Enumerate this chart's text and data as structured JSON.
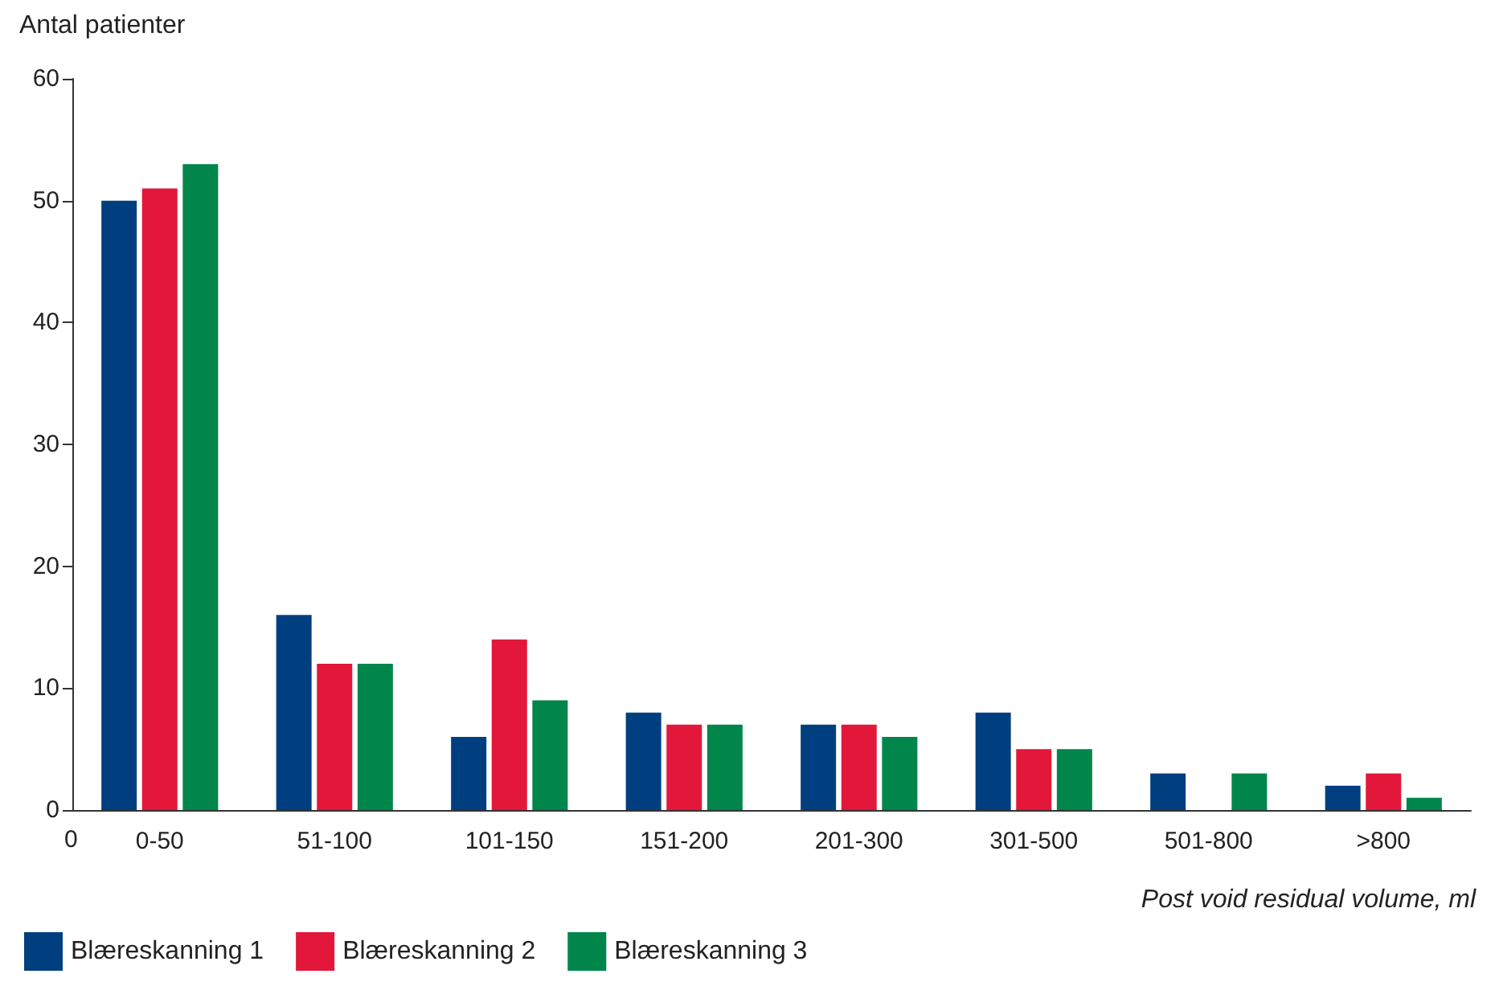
{
  "chart_data": {
    "type": "bar",
    "ylabel": "Antal patienter",
    "xlabel": "Post void residual volume, ml",
    "categories": [
      "0-50",
      "51-100",
      "101-150",
      "151-200",
      "201-300",
      "301-500",
      "501-800",
      ">800"
    ],
    "series": [
      {
        "name": "Blæreskanning 1",
        "color": "#003f7f",
        "values": [
          50,
          16,
          6,
          8,
          7,
          8,
          3,
          2
        ]
      },
      {
        "name": "Blæreskanning 2",
        "color": "#e3173a",
        "values": [
          51,
          12,
          14,
          7,
          7,
          5,
          0,
          3
        ]
      },
      {
        "name": "Blæreskanning 3",
        "color": "#00854a",
        "values": [
          53,
          12,
          9,
          7,
          6,
          5,
          3,
          1
        ]
      }
    ],
    "ylim": [
      0,
      60
    ],
    "yticks": [
      0,
      10,
      20,
      30,
      40,
      50,
      60
    ],
    "grid": false,
    "legend": "bottom left",
    "annotations": [
      "0"
    ]
  }
}
